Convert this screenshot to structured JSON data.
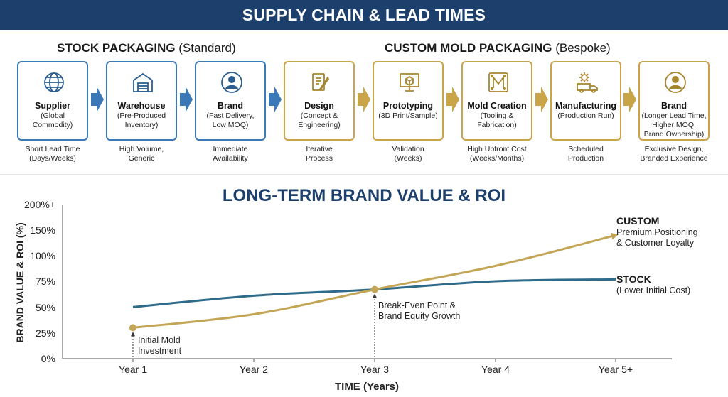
{
  "banner": {
    "title": "SUPPLY CHAIN & LEAD TIMES"
  },
  "sections": {
    "stock": {
      "name": "STOCK PACKAGING",
      "qualifier": "(Standard)"
    },
    "custom": {
      "name": "CUSTOM MOLD PACKAGING",
      "qualifier": "(Bespoke)"
    }
  },
  "steps": [
    {
      "title": "Supplier",
      "sub": "(Global\nCommodity)",
      "note": "Short Lead Time\n(Days/Weeks)",
      "icon": "globe-icon",
      "group": "stock"
    },
    {
      "title": "Warehouse",
      "sub": "(Pre-Produced\nInventory)",
      "note": "High Volume,\nGeneric",
      "icon": "warehouse-icon",
      "group": "stock"
    },
    {
      "title": "Brand",
      "sub": "(Fast Delivery,\nLow MOQ)",
      "note": "Immediate\nAvailability",
      "icon": "user-icon",
      "group": "stock"
    },
    {
      "title": "Design",
      "sub": "(Concept &\nEngineering)",
      "note": "Iterative\nProcess",
      "icon": "design-pencil-icon",
      "group": "custom"
    },
    {
      "title": "Prototyping",
      "sub": "(3D Print/Sample)",
      "note": "Validation\n(Weeks)",
      "icon": "monitor-cube-icon",
      "group": "custom"
    },
    {
      "title": "Mold Creation",
      "sub": "(Tooling &\nFabrication)",
      "note": "High Upfront Cost\n(Weeks/Months)",
      "icon": "mold-icon",
      "group": "custom"
    },
    {
      "title": "Manufacturing",
      "sub": "(Production Run)",
      "note": "Scheduled\nProduction",
      "icon": "gear-truck-icon",
      "group": "custom"
    },
    {
      "title": "Brand",
      "sub": "(Longer Lead Time,\nHigher MOQ,\nBrand Ownership)",
      "note": "Exclusive Design,\nBranded Experience",
      "icon": "user-icon",
      "group": "custom"
    }
  ],
  "colors": {
    "navy": "#1d3f6b",
    "stock_blue": "#3a78b8",
    "custom_gold": "#c9a448",
    "stock_line": "#2e6a8a",
    "custom_line": "#c2a555"
  },
  "chart_title": "LONG-TERM BRAND VALUE & ROI",
  "chart_data": {
    "type": "line",
    "xlabel": "TIME (Years)",
    "ylabel": "BRAND VALUE & ROI (%)",
    "x": [
      "Year 1",
      "Year 2",
      "Year 3",
      "Year 4",
      "Year 5+"
    ],
    "y_ticks": [
      "0%",
      "25%",
      "50%",
      "75%",
      "100%",
      "150%",
      "200%+"
    ],
    "grid": false,
    "series": [
      {
        "name": "STOCK",
        "description": "(Lower Initial Cost)",
        "x": [
          1,
          2,
          3,
          4,
          5
        ],
        "y": [
          50,
          61,
          67,
          75,
          78
        ]
      },
      {
        "name": "CUSTOM",
        "description": "Premium Positioning\n& Customer Loyalty",
        "x": [
          1,
          2,
          3,
          4,
          5
        ],
        "y": [
          30,
          43,
          67,
          100,
          150
        ]
      }
    ],
    "annotations": [
      {
        "text": "Initial Mold\nInvestment",
        "x": 1,
        "y": 30
      },
      {
        "text": "Break-Even Point &\nBrand Equity Growth",
        "x": 3,
        "y": 67
      }
    ]
  }
}
